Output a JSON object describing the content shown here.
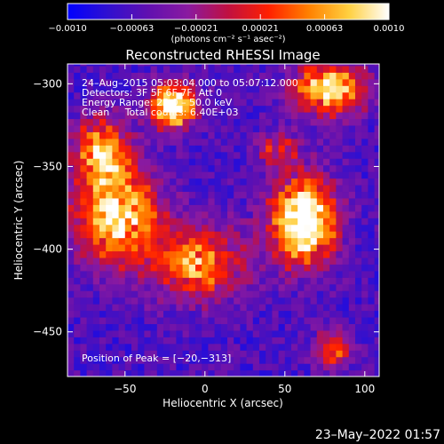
{
  "chart_data": {
    "type": "heatmap",
    "title": "Reconstructed RHESSI Image",
    "xlabel": "Heliocentric X (arcsec)",
    "ylabel": "Heliocentric Y (arcsec)",
    "xlim": [
      -86,
      109
    ],
    "ylim": [
      -477,
      -288
    ],
    "x_ticks": [
      -50,
      0,
      50,
      100
    ],
    "x_tick_labels": [
      "−50",
      "0",
      "50",
      "100"
    ],
    "y_ticks": [
      -300,
      -350,
      -400,
      -450
    ],
    "y_tick_labels": [
      "−300",
      "−350",
      "−400",
      "−450"
    ],
    "colorbar": {
      "min": -0.001,
      "max": 0.001,
      "tick_labels": [
        "−0.0010",
        "−0.00063",
        "−0.00021",
        "0.00021",
        "0.00063",
        "0.0010"
      ],
      "unit_label": "(photons cm⁻² s⁻¹ asec⁻²)",
      "colors": [
        "#0000ff",
        "#3010d0",
        "#6010b0",
        "#8a1aa0",
        "#c01040",
        "#ff2000",
        "#ff8000",
        "#ffd040",
        "#ffffff"
      ]
    },
    "annotations": [
      "24–Aug–2015 05:03:04.000 to 05:07:12.000",
      "Detectors: 3F 5F 6F 7F, Att 0",
      "Energy Range: 25.0 – 50.0 keV",
      "Clean     Total counts: 6.40E+03"
    ],
    "peak_label": "Position of Peak = [−20,−313]",
    "peak": [
      -20,
      -313
    ],
    "sources": [
      {
        "x": 62,
        "y": -383,
        "peak": 1.0,
        "sx": 14,
        "sy": 18
      },
      {
        "x": -20,
        "y": -313,
        "peak": 1.0,
        "sx": 10,
        "sy": 9
      },
      {
        "x": 78,
        "y": -303,
        "peak": 0.75,
        "sx": 16,
        "sy": 11
      },
      {
        "x": -55,
        "y": -378,
        "peak": 0.8,
        "sx": 18,
        "sy": 20
      },
      {
        "x": -65,
        "y": -340,
        "peak": 0.6,
        "sx": 12,
        "sy": 14
      },
      {
        "x": -5,
        "y": -408,
        "peak": 0.6,
        "sx": 20,
        "sy": 16
      },
      {
        "x": 80,
        "y": -460,
        "peak": 0.45,
        "sx": 8,
        "sy": 8
      },
      {
        "x": 45,
        "y": -340,
        "peak": 0.35,
        "sx": 10,
        "sy": 8
      }
    ],
    "background_level": 0.2
  },
  "footer_date": "23–May–2022 01:57"
}
